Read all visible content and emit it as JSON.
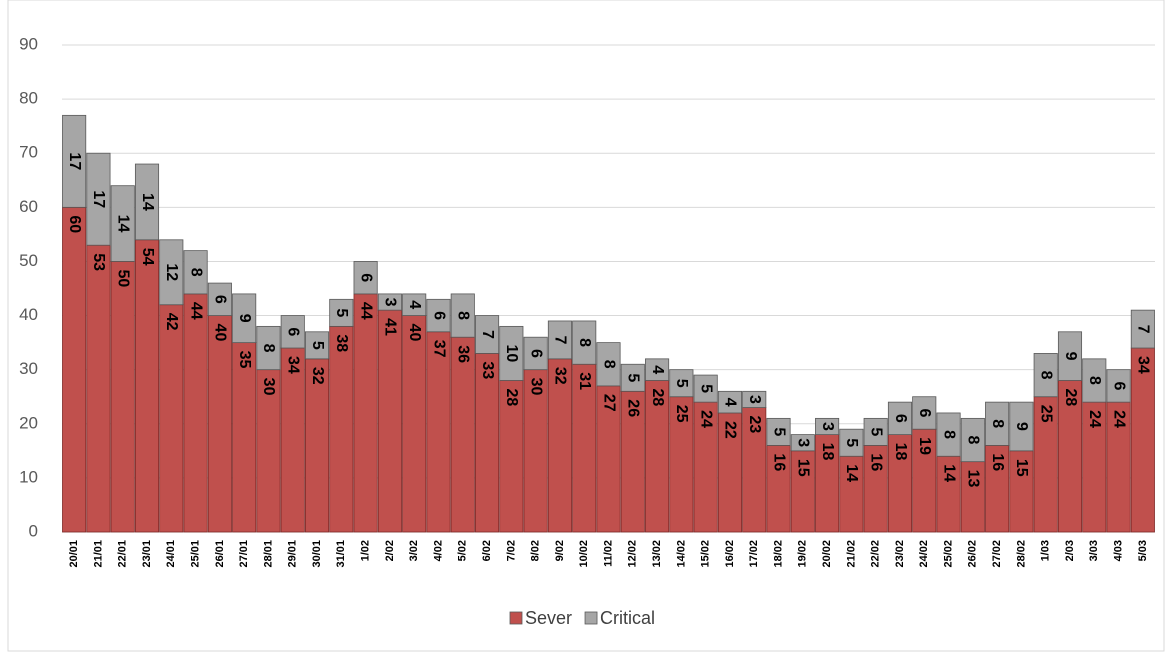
{
  "chart_data": {
    "type": "stacked_bar",
    "categories": [
      "20/01",
      "21/01",
      "22/01",
      "23/01",
      "24/01",
      "25/01",
      "26/01",
      "27/01",
      "28/01",
      "29/01",
      "30/01",
      "31/01",
      "1/02",
      "2/02",
      "3/02",
      "4/02",
      "5/02",
      "6/02",
      "7/02",
      "8/02",
      "9/02",
      "10/02",
      "11/02",
      "12/02",
      "13/02",
      "14/02",
      "15/02",
      "16/02",
      "17/02",
      "18/02",
      "19/02",
      "20/02",
      "21/02",
      "22/02",
      "23/02",
      "24/02",
      "25/02",
      "26/02",
      "27/02",
      "28/02",
      "1/03",
      "2/03",
      "3/03",
      "4/03",
      "5/03"
    ],
    "series": [
      {
        "name": "Sever",
        "color": "#c0504d",
        "values": [
          60,
          53,
          50,
          54,
          42,
          44,
          40,
          35,
          30,
          34,
          32,
          38,
          44,
          41,
          40,
          37,
          36,
          33,
          28,
          30,
          32,
          31,
          27,
          26,
          28,
          25,
          24,
          22,
          23,
          16,
          15,
          18,
          14,
          16,
          18,
          19,
          14,
          13,
          16,
          15,
          25,
          28,
          24,
          24,
          34
        ]
      },
      {
        "name": "Critical",
        "color": "#a6a6a6",
        "values": [
          17,
          17,
          14,
          14,
          12,
          8,
          6,
          9,
          8,
          6,
          5,
          5,
          6,
          3,
          4,
          6,
          8,
          7,
          10,
          6,
          7,
          8,
          8,
          5,
          4,
          5,
          5,
          4,
          3,
          5,
          3,
          3,
          5,
          5,
          6,
          6,
          8,
          8,
          8,
          9,
          8,
          9,
          8,
          6,
          7
        ]
      }
    ],
    "ylim": [
      0,
      90
    ],
    "yticks": [
      0,
      10,
      20,
      30,
      40,
      50,
      60,
      70,
      80,
      90
    ],
    "grid": true,
    "legend": "bottom"
  }
}
